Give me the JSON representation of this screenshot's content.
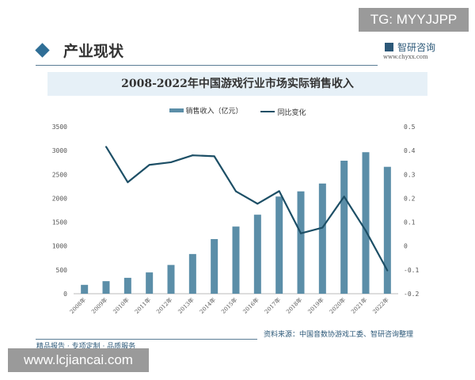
{
  "badge_top": "TG: MYYJJPP",
  "header": {
    "section_title": "产业现状",
    "logo_text": "智研咨询",
    "logo_url": "www.chyxx.com"
  },
  "footer": {
    "source": "资料来源：中国音数协游戏工委、智研咨询整理",
    "slogan": "精品报告 · 专项定制 · 品质服务",
    "site_badge": "www.lcjiancai.com"
  },
  "colors": {
    "bar": "#5b8ea8",
    "line": "#1d4f66",
    "accent": "#2f6e96"
  },
  "chart_data": {
    "type": "bar+line",
    "title": "2008-2022年中国游戏行业市场实际销售收入",
    "legend_position": "top",
    "categories": [
      "2008年",
      "2009年",
      "2010年",
      "2011年",
      "2012年",
      "2013年",
      "2014年",
      "2015年",
      "2016年",
      "2017年",
      "2018年",
      "2019年",
      "2020年",
      "2021年",
      "2022年"
    ],
    "series": [
      {
        "name": "销售收入（亿元）",
        "type": "bar",
        "axis": "left",
        "values": [
          185.6,
          262.8,
          333.0,
          446.1,
          602.8,
          831.7,
          1144.8,
          1407.0,
          1655.7,
          2036.1,
          2144.4,
          2308.8,
          2786.9,
          2965.1,
          2658.8
        ]
      },
      {
        "name": "同比变化",
        "type": "line",
        "axis": "right",
        "values": [
          null,
          0.416,
          0.267,
          0.34,
          0.351,
          0.38,
          0.376,
          0.229,
          0.177,
          0.23,
          0.053,
          0.077,
          0.207,
          0.064,
          -0.103
        ]
      }
    ],
    "ylim_left": [
      0,
      3500
    ],
    "yticks_left": [
      "0",
      "500",
      "1000",
      "1500",
      "2000",
      "2500",
      "3000",
      "3500"
    ],
    "ylim_right": [
      -0.2,
      0.5
    ],
    "yticks_right": [
      "-0.2",
      "-0.1",
      "0",
      "0.1",
      "0.2",
      "0.3",
      "0.4",
      "0.5"
    ],
    "grid": false
  }
}
